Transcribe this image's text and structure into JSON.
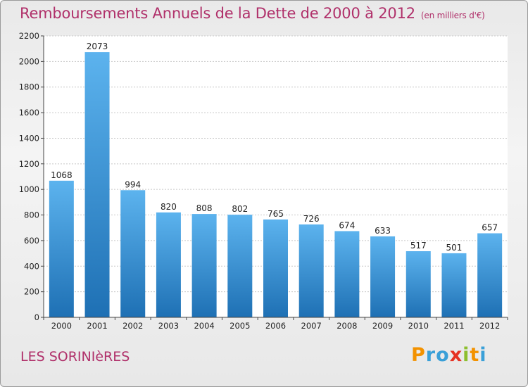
{
  "title": "Remboursements Annuels de la Dette de 2000 à 2012",
  "unit": "(en milliers d'€)",
  "commune": "LES SORINIèRES",
  "logo": {
    "letters": [
      "P",
      "r",
      "o",
      "x",
      "i",
      "t",
      "i"
    ],
    "colors": [
      "#f39200",
      "#3aa0d8",
      "#3aa0d8",
      "#e63223",
      "#8dbf2e",
      "#f39200",
      "#3aa0d8"
    ]
  },
  "colors": {
    "bar": "#3d97d9",
    "bar_light": "#5cb3ee",
    "bar_dark": "#1e70b4",
    "text_accent": "#b0306a"
  },
  "chart_data": {
    "type": "bar",
    "categories": [
      "2000",
      "2001",
      "2002",
      "2003",
      "2004",
      "2005",
      "2006",
      "2007",
      "2008",
      "2009",
      "2010",
      "2011",
      "2012"
    ],
    "values": [
      1068,
      2073,
      994,
      820,
      808,
      802,
      765,
      726,
      674,
      633,
      517,
      501,
      657
    ],
    "title": "Remboursements Annuels de la Dette de 2000 à 2012",
    "ylim": [
      0,
      2200
    ],
    "yticks": [
      0,
      200,
      400,
      600,
      800,
      1000,
      1200,
      1400,
      1600,
      1800,
      2000,
      2200
    ],
    "grid": true,
    "legend": "none"
  }
}
